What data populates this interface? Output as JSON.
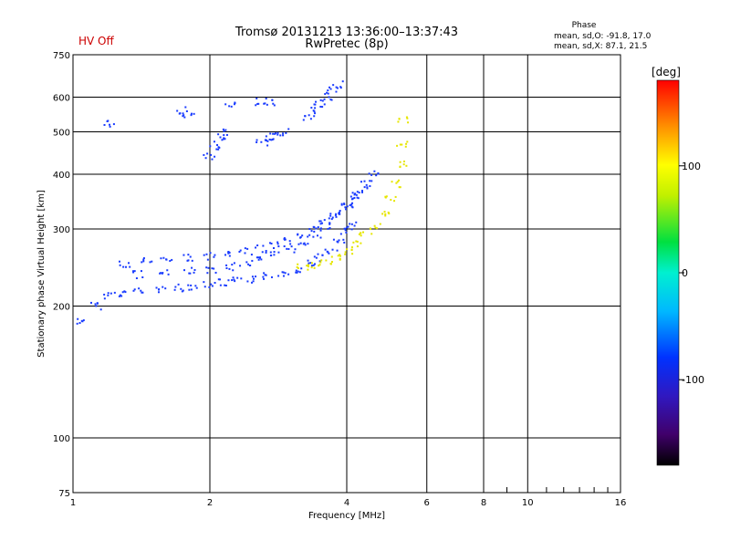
{
  "header": {
    "status_label": "HV Off",
    "status_color": "#cc0000",
    "title_line1": "Tromsø 20131213 13:36:00–13:37:43",
    "title_line2": "RwPretec (8p)",
    "phase_title": "Phase",
    "phase_stat_o": "mean, sd,O: -91.8, 17.0",
    "phase_stat_x": "mean, sd,X: 87.1, 21.5"
  },
  "colorbar": {
    "unit_label": "[deg]",
    "ticks": [
      {
        "label": "100",
        "value": 100
      },
      {
        "label": "0",
        "value": 0
      },
      {
        "label": "-100",
        "value": -100
      }
    ],
    "range": [
      -180,
      180
    ]
  },
  "chart_data": {
    "type": "scatter",
    "title": "Tromsø 20131213 13:36:00–13:37:43",
    "subtitle": "RwPretec (8p)",
    "xlabel": "Frequency [MHz]",
    "ylabel": "Stationary phase Virtual Height [km]",
    "x_scale": "log",
    "y_scale": "log",
    "xlim": [
      1,
      16
    ],
    "ylim": [
      75,
      750
    ],
    "grid": true,
    "x_ticks": [
      "1",
      "2",
      "4",
      "6",
      "8",
      "10",
      "16"
    ],
    "x_tick_values": [
      1,
      2,
      4,
      6,
      8,
      10,
      16
    ],
    "y_ticks": [
      "75",
      "100",
      "200",
      "300",
      "400",
      "500",
      "600",
      "750"
    ],
    "y_tick_values": [
      75,
      100,
      200,
      300,
      400,
      500,
      600,
      750
    ],
    "series": [
      {
        "mode": "O",
        "color": "#1a3cff",
        "traces": [
          {
            "x": [
              1.05,
              1.12,
              1.2,
              1.3,
              1.4,
              1.55,
              1.7,
              1.85,
              2.0,
              2.15,
              2.3,
              2.5,
              2.7,
              2.9,
              3.1,
              3.3,
              3.5,
              3.7,
              3.85,
              4.0,
              4.1
            ],
            "y": [
              185,
              200,
              212,
              214,
              216,
              218,
              220,
              222,
              224,
              226,
              228,
              230,
              234,
              238,
              243,
              250,
              258,
              268,
              280,
              295,
              305
            ]
          },
          {
            "x": [
              1.3,
              1.45,
              1.6,
              1.8,
              2.0,
              2.2,
              2.4,
              2.6,
              2.8,
              3.0,
              3.2,
              3.4,
              3.6,
              3.8,
              4.0,
              4.2,
              4.4
            ],
            "y": [
              250,
              254,
              256,
              258,
              260,
              262,
              266,
              270,
              276,
              282,
              290,
              300,
              312,
              325,
              340,
              355,
              370
            ]
          },
          {
            "x": [
              1.4,
              1.6,
              1.8,
              2.0,
              2.2,
              2.4,
              2.6,
              2.8,
              3.0,
              3.2,
              3.4,
              3.6,
              3.8,
              4.0,
              4.2,
              4.4,
              4.6
            ],
            "y": [
              236,
              238,
              240,
              242,
              246,
              250,
              255,
              262,
              270,
              280,
              292,
              305,
              320,
              338,
              358,
              380,
              405
            ]
          },
          {
            "x": [
              2.0,
              2.05,
              2.1,
              2.15,
              2.6,
              2.7,
              2.8,
              2.9
            ],
            "y": [
              440,
              460,
              480,
              500,
              470,
              480,
              490,
              500
            ]
          },
          {
            "x": [
              3.3,
              3.4,
              3.5,
              3.6,
              3.7,
              3.8,
              1.75,
              1.8,
              2.2,
              2.6,
              2.7,
              1.2
            ],
            "y": [
              540,
              560,
              580,
              600,
              620,
              640,
              560,
              540,
              580,
              585,
              585,
              520
            ]
          }
        ]
      },
      {
        "mode": "X",
        "color": "#e6e600",
        "traces": [
          {
            "x": [
              3.2,
              3.4,
              3.6,
              3.8,
              4.0,
              4.2,
              4.4,
              4.6,
              4.8,
              5.0,
              5.15,
              5.25,
              5.3,
              5.35
            ],
            "y": [
              245,
              248,
              252,
              258,
              266,
              276,
              290,
              305,
              325,
              350,
              380,
              420,
              470,
              530
            ]
          }
        ]
      }
    ]
  }
}
